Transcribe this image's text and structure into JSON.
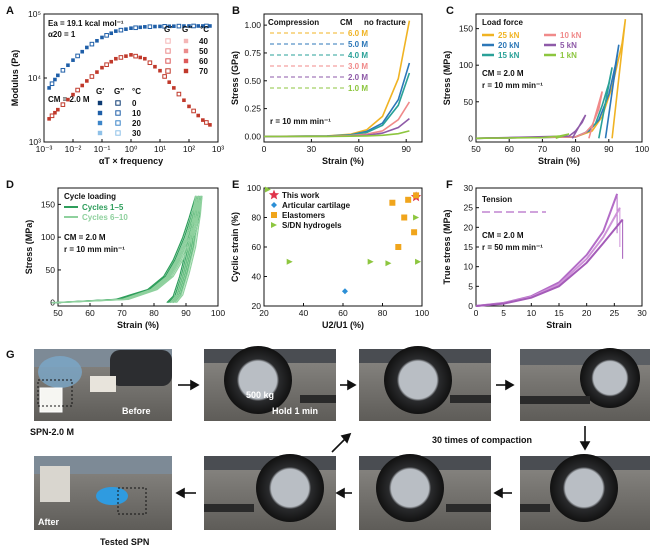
{
  "panels": {
    "A": "A",
    "B": "B",
    "C": "C",
    "D": "D",
    "E": "E",
    "F": "F",
    "G": "G"
  },
  "chart_data": [
    {
      "id": "A",
      "type": "scatter",
      "xscale": "log",
      "yscale": "log",
      "xlabel": "αT × frequency",
      "ylabel": "Modulus (Pa)",
      "xlim": [
        0.001,
        1000
      ],
      "ylim": [
        1000,
        100000
      ],
      "xticks": [
        "10⁻³",
        "10⁻²",
        "10⁻¹",
        "10⁰",
        "10¹",
        "10²",
        "10³"
      ],
      "yticks": [
        "10³",
        "10⁴",
        "10⁵"
      ],
      "annotations": [
        "Ea = 19.1 kcal mol⁻¹",
        "α20 = 1",
        "CM = 2.0 M"
      ],
      "legend_headers": {
        "gp": "G′",
        "gpp": "G″",
        "unit": "°C"
      },
      "temps_left": [
        "0",
        "10",
        "20",
        "30"
      ],
      "temps_right": [
        "40",
        "50",
        "60",
        "70"
      ],
      "series": [
        {
          "name": "G′",
          "color": "#1f5fa8",
          "x": [
            0.0015,
            0.003,
            0.01,
            0.03,
            0.1,
            0.3,
            1,
            3,
            10,
            30,
            100,
            300,
            700
          ],
          "y": [
            7000,
            11000,
            19000,
            30000,
            43000,
            54000,
            60000,
            63000,
            64000,
            64500,
            65000,
            65000,
            65000
          ]
        },
        {
          "name": "G″",
          "color": "#c0392b",
          "x": [
            0.0015,
            0.003,
            0.01,
            0.03,
            0.1,
            0.3,
            1,
            3,
            10,
            30,
            100,
            300,
            700
          ],
          "y": [
            2300,
            3200,
            5500,
            9000,
            14500,
            20000,
            23000,
            20000,
            13000,
            7000,
            3600,
            2200,
            1700
          ]
        }
      ]
    },
    {
      "id": "B",
      "type": "line",
      "xlabel": "Strain (%)",
      "ylabel": "Stress (GPa)",
      "xlim": [
        0,
        100
      ],
      "ylim": [
        -0.05,
        1.1
      ],
      "xticks": [
        0,
        30,
        60,
        90
      ],
      "yticks": [
        "0.00",
        "0.25",
        "0.50",
        "0.75",
        "1.00"
      ],
      "legend_title": "Compression",
      "legend_header": "CM",
      "legend_note": "no fracture",
      "annotation": "r = 10 mm min⁻¹",
      "series": [
        {
          "name": "6.0 M",
          "color": "#f0b323",
          "x": [
            0,
            40,
            55,
            65,
            75,
            85,
            92
          ],
          "y": [
            0,
            0.005,
            0.02,
            0.06,
            0.18,
            0.52,
            1.04
          ]
        },
        {
          "name": "5.0 M",
          "color": "#2c77b8",
          "x": [
            0,
            40,
            55,
            65,
            75,
            85,
            92
          ],
          "y": [
            0,
            0.004,
            0.015,
            0.045,
            0.12,
            0.33,
            0.66
          ]
        },
        {
          "name": "4.0 M",
          "color": "#2aa198",
          "x": [
            0,
            40,
            55,
            65,
            75,
            85,
            92
          ],
          "y": [
            0,
            0.003,
            0.012,
            0.035,
            0.1,
            0.28,
            0.57
          ]
        },
        {
          "name": "3.0 M",
          "color": "#f08a8a",
          "x": [
            0,
            40,
            55,
            65,
            75,
            85,
            92
          ],
          "y": [
            0,
            0.002,
            0.008,
            0.02,
            0.05,
            0.15,
            0.31
          ]
        },
        {
          "name": "2.0 M",
          "color": "#8e5aa8",
          "x": [
            0,
            40,
            55,
            65,
            75,
            85,
            92
          ],
          "y": [
            0,
            0.001,
            0.004,
            0.01,
            0.03,
            0.08,
            0.16
          ]
        },
        {
          "name": "1.0 M",
          "color": "#8dc63f",
          "x": [
            0,
            40,
            55,
            65,
            75,
            85,
            92
          ],
          "y": [
            0,
            0.0005,
            0.002,
            0.005,
            0.01,
            0.025,
            0.05
          ]
        }
      ]
    },
    {
      "id": "C",
      "type": "line",
      "xlabel": "Strain (%)",
      "ylabel": "Stress (MPa)",
      "xlim": [
        50,
        100
      ],
      "ylim": [
        -5,
        170
      ],
      "xticks": [
        50,
        60,
        70,
        80,
        90,
        100
      ],
      "yticks": [
        0,
        50,
        100,
        150
      ],
      "legend_title": "Load force",
      "annotation_lines": [
        "CM = 2.0 M",
        "r = 10 mm min⁻¹"
      ],
      "series": [
        {
          "name": "25 kN",
          "color": "#f0b323",
          "x": [
            50,
            80,
            85,
            88,
            91,
            94,
            95
          ],
          "y": [
            0,
            2,
            10,
            30,
            70,
            130,
            163
          ]
        },
        {
          "name": "20 kN",
          "color": "#2c77b8",
          "x": [
            50,
            80,
            84,
            87,
            90,
            92,
            93
          ],
          "y": [
            0,
            2,
            10,
            25,
            60,
            100,
            128
          ]
        },
        {
          "name": "15 kN",
          "color": "#2aa198",
          "x": [
            50,
            80,
            83,
            86,
            88,
            90,
            91
          ],
          "y": [
            0,
            2,
            8,
            20,
            45,
            75,
            97
          ]
        },
        {
          "name": "10 kN",
          "color": "#f08a8a",
          "x": [
            50,
            80,
            83,
            85,
            87,
            88
          ],
          "y": [
            0,
            2,
            8,
            18,
            40,
            64
          ]
        },
        {
          "name": "5 kN",
          "color": "#8e5aa8",
          "x": [
            50,
            78,
            80,
            82,
            83
          ],
          "y": [
            0,
            3,
            10,
            22,
            32
          ]
        },
        {
          "name": "1 kN",
          "color": "#8dc63f",
          "x": [
            50,
            70,
            75,
            78
          ],
          "y": [
            0,
            1,
            3,
            6
          ]
        }
      ]
    },
    {
      "id": "D",
      "type": "line",
      "xlabel": "Strain (%)",
      "ylabel": "Stress (MPa)",
      "xlim": [
        50,
        100
      ],
      "ylim": [
        -5,
        175
      ],
      "xticks": [
        50,
        60,
        70,
        80,
        90,
        100
      ],
      "yticks": [
        0,
        50,
        100,
        150
      ],
      "legend_title": "Cycle loading",
      "annotation_lines": [
        "CM = 2.0 M",
        "r = 10 mm min⁻¹"
      ],
      "series": [
        {
          "name": "Cycles 1–5",
          "color": "#2e9e5b",
          "x": [
            50,
            70,
            80,
            85,
            88,
            91,
            93,
            95,
            94,
            92,
            90,
            88,
            86
          ],
          "y": [
            0,
            5,
            20,
            40,
            65,
            100,
            130,
            163,
            130,
            80,
            40,
            10,
            0
          ]
        },
        {
          "name": "Cycles 6–10",
          "color": "#8fd19e",
          "x": [
            50,
            72,
            81,
            86,
            89,
            92,
            94,
            95,
            94.5,
            93,
            91,
            89,
            87
          ],
          "y": [
            0,
            5,
            20,
            40,
            65,
            100,
            135,
            163,
            135,
            85,
            45,
            12,
            0
          ]
        }
      ]
    },
    {
      "id": "E",
      "type": "scatter",
      "xlabel": "U2/U1 (%)",
      "ylabel": "Cyclic strain (%)",
      "xlim": [
        20,
        100
      ],
      "ylim": [
        20,
        100
      ],
      "xticks": [
        20,
        40,
        60,
        80,
        100
      ],
      "yticks": [
        20,
        40,
        60,
        80,
        100
      ],
      "series": [
        {
          "name": "This work",
          "color": "#e0344b",
          "marker": "star",
          "x": [
            97
          ],
          "y": [
            94
          ]
        },
        {
          "name": "Articular cartilage",
          "color": "#2c8fd6",
          "marker": "diamond",
          "x": [
            61
          ],
          "y": [
            30
          ]
        },
        {
          "name": "Elastomers",
          "color": "#f0a51c",
          "marker": "square",
          "x": [
            85,
            88,
            91,
            93,
            96,
            97
          ],
          "y": [
            90,
            60,
            80,
            92,
            70,
            95
          ]
        },
        {
          "name": "S/DN hydrogels",
          "color": "#8dc63f",
          "marker": "triangle",
          "x": [
            22,
            33,
            74,
            83,
            97,
            98
          ],
          "y": [
            99,
            50,
            50,
            49,
            80,
            50
          ]
        }
      ]
    },
    {
      "id": "F",
      "type": "line",
      "xlabel": "Strain",
      "ylabel": "True stress (MPa)",
      "xlim": [
        0,
        30
      ],
      "ylim": [
        0,
        30
      ],
      "xticks": [
        0,
        5,
        10,
        15,
        20,
        25,
        30
      ],
      "yticks": [
        0,
        5,
        10,
        15,
        20,
        25,
        30
      ],
      "legend_title": "Tension",
      "annotation_lines": [
        "CM = 2.0 M",
        "r = 50 mm min⁻¹"
      ],
      "series": [
        {
          "name": "",
          "color": "#b36cc7",
          "x": [
            0,
            5,
            10,
            15,
            20,
            23,
            25.5
          ],
          "y": [
            0,
            0.8,
            2.5,
            6,
            13,
            19,
            28.5
          ]
        },
        {
          "name": "",
          "color": "#cf93d9",
          "x": [
            0,
            5,
            10,
            15,
            20,
            23,
            26
          ],
          "y": [
            0,
            0.7,
            2.3,
            5.5,
            12,
            17.5,
            25
          ]
        },
        {
          "name": "",
          "color": "#a45bb8",
          "x": [
            0,
            5,
            10,
            15,
            20,
            23,
            26.5
          ],
          "y": [
            0,
            0.6,
            2.1,
            5,
            11,
            16,
            22
          ]
        }
      ]
    }
  ],
  "photos": {
    "before_label": "Before",
    "sample_label": "SPN-2.0 M",
    "weight_label": "500 kg",
    "hold_label": "Hold 1 min",
    "compaction_label": "30 times of compaction",
    "after_label": "After",
    "tested_label": "Tested SPN"
  }
}
